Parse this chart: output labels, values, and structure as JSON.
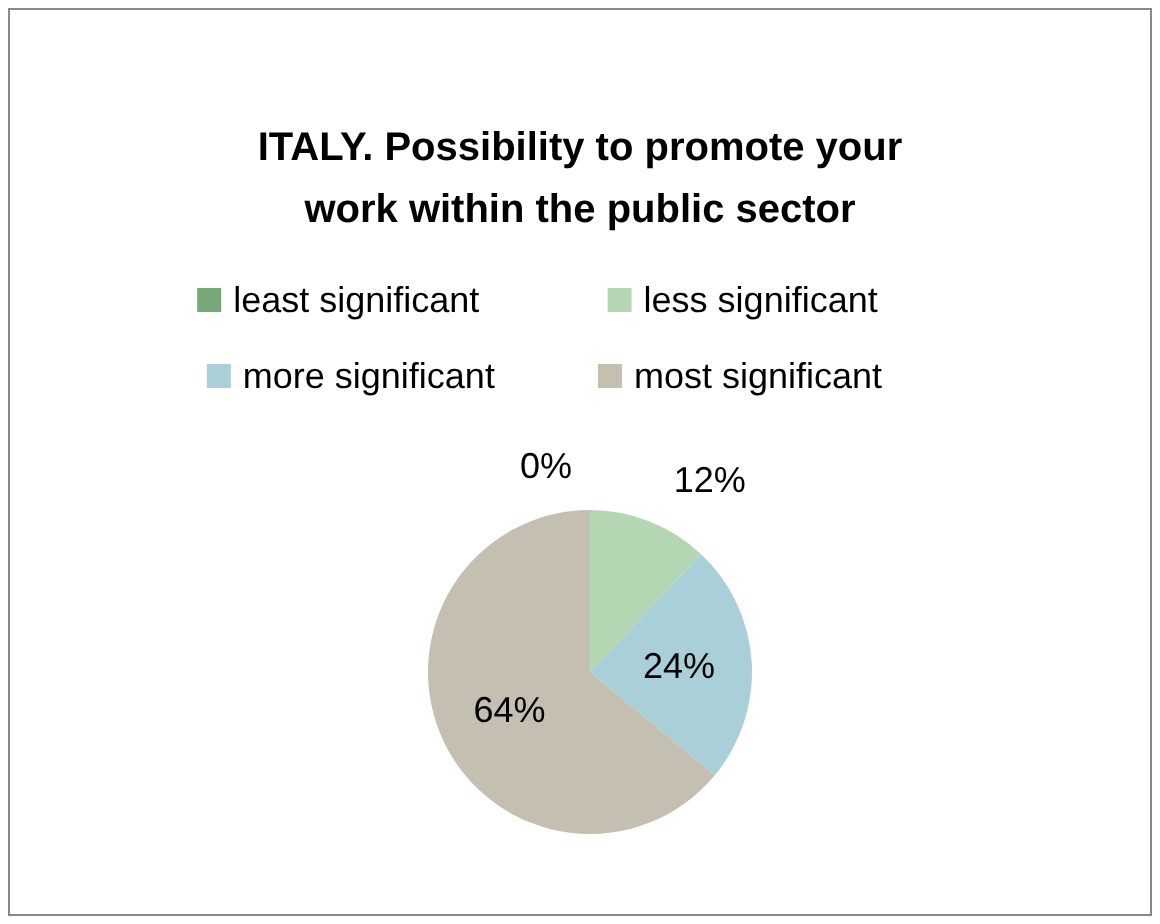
{
  "chart_data": {
    "type": "pie",
    "title": "ITALY. Possibility to promote your work within the public sector",
    "categories": [
      "least significant",
      "less significant",
      "more significant",
      "most significant"
    ],
    "values": [
      0,
      12,
      24,
      64
    ],
    "colors": [
      "#77a978",
      "#b5d6b2",
      "#a9cfd8",
      "#c4bfb0"
    ],
    "value_labels": [
      "0%",
      "12%",
      "24%",
      "64%"
    ],
    "legend": "top"
  }
}
